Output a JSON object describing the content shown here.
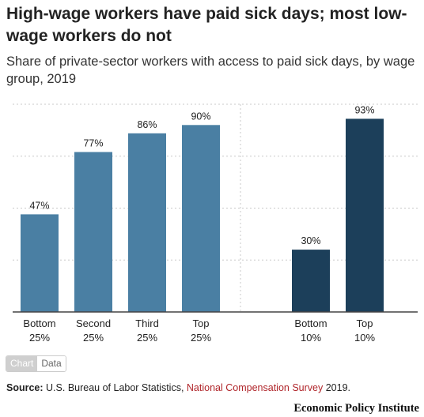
{
  "title": "High-wage workers have paid sick days; most low-wage workers do not",
  "subtitle": "Share of private-sector workers with access to paid sick days, by wage group, 2019",
  "toggle": {
    "chart_label": "Chart",
    "data_label": "Data"
  },
  "source": {
    "label": "Source:",
    "text_before": "U.S. Bureau of Labor Statistics,",
    "link_text": "National Compensation Survey",
    "text_after": "2019."
  },
  "brand": "Economic Policy Institute",
  "chart_data": {
    "type": "bar",
    "ylim": [
      0,
      100
    ],
    "grid": true,
    "groups": [
      {
        "color": "#4a7fa3",
        "bars": [
          {
            "label_line1": "Bottom",
            "label_line2": "25%",
            "value": 47,
            "value_label": "47%"
          },
          {
            "label_line1": "Second",
            "label_line2": "25%",
            "value": 77,
            "value_label": "77%"
          },
          {
            "label_line1": "Third",
            "label_line2": "25%",
            "value": 86,
            "value_label": "86%"
          },
          {
            "label_line1": "Top",
            "label_line2": "25%",
            "value": 90,
            "value_label": "90%"
          }
        ]
      },
      {
        "color": "#1c3f5a",
        "bars": [
          {
            "label_line1": "Bottom",
            "label_line2": "10%",
            "value": 30,
            "value_label": "30%"
          },
          {
            "label_line1": "Top",
            "label_line2": "10%",
            "value": 93,
            "value_label": "93%"
          }
        ]
      }
    ]
  }
}
